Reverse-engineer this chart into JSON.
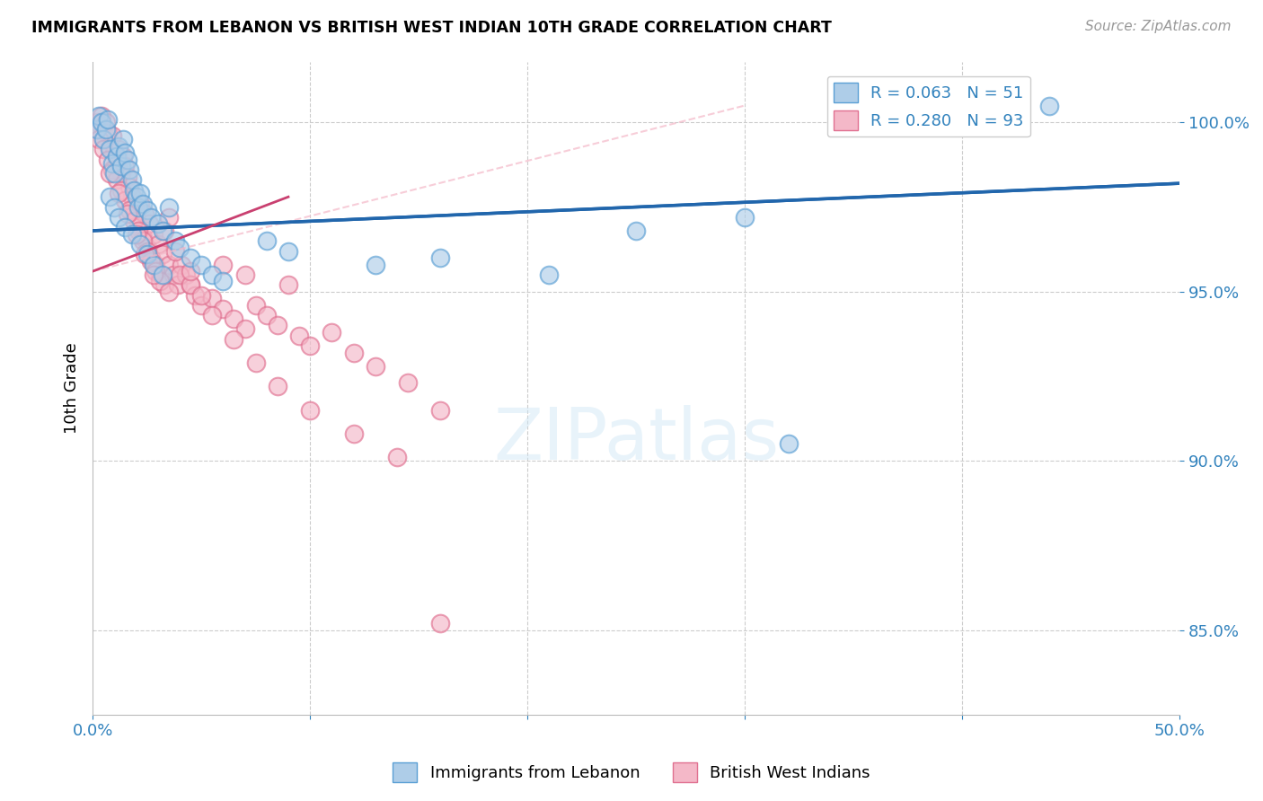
{
  "title": "IMMIGRANTS FROM LEBANON VS BRITISH WEST INDIAN 10TH GRADE CORRELATION CHART",
  "source": "Source: ZipAtlas.com",
  "ylabel": "10th Grade",
  "yticks": [
    85.0,
    90.0,
    95.0,
    100.0
  ],
  "ytick_labels": [
    "85.0%",
    "90.0%",
    "95.0%",
    "100.0%"
  ],
  "xmin": 0.0,
  "xmax": 0.5,
  "ymin": 82.5,
  "ymax": 101.8,
  "legend_r1": "R = 0.063",
  "legend_n1": "N = 51",
  "legend_r2": "R = 0.280",
  "legend_n2": "N = 93",
  "color_blue": "#aecde8",
  "color_pink": "#f4b8c8",
  "color_blue_edge": "#5a9fd4",
  "color_pink_edge": "#e07090",
  "color_blue_line": "#2166ac",
  "color_pink_line": "#c94070",
  "color_text_blue": "#3182bd",
  "blue_scatter_x": [
    0.002,
    0.003,
    0.004,
    0.005,
    0.006,
    0.007,
    0.008,
    0.009,
    0.01,
    0.011,
    0.012,
    0.013,
    0.014,
    0.015,
    0.016,
    0.017,
    0.018,
    0.019,
    0.02,
    0.021,
    0.022,
    0.023,
    0.025,
    0.027,
    0.03,
    0.032,
    0.035,
    0.038,
    0.04,
    0.045,
    0.05,
    0.055,
    0.06,
    0.08,
    0.09,
    0.13,
    0.16,
    0.21,
    0.25,
    0.3,
    0.32,
    0.44,
    0.008,
    0.01,
    0.012,
    0.015,
    0.018,
    0.022,
    0.025,
    0.028,
    0.032
  ],
  "blue_scatter_y": [
    99.8,
    100.2,
    100.0,
    99.5,
    99.8,
    100.1,
    99.2,
    98.8,
    98.5,
    99.0,
    99.3,
    98.7,
    99.5,
    99.1,
    98.9,
    98.6,
    98.3,
    98.0,
    97.8,
    97.5,
    97.9,
    97.6,
    97.4,
    97.2,
    97.0,
    96.8,
    97.5,
    96.5,
    96.3,
    96.0,
    95.8,
    95.5,
    95.3,
    96.5,
    96.2,
    95.8,
    96.0,
    95.5,
    96.8,
    97.2,
    90.5,
    100.5,
    97.8,
    97.5,
    97.2,
    96.9,
    96.7,
    96.4,
    96.1,
    95.8,
    95.5
  ],
  "pink_scatter_x": [
    0.002,
    0.003,
    0.004,
    0.005,
    0.006,
    0.007,
    0.008,
    0.009,
    0.01,
    0.011,
    0.012,
    0.013,
    0.014,
    0.015,
    0.016,
    0.017,
    0.018,
    0.019,
    0.02,
    0.021,
    0.022,
    0.023,
    0.024,
    0.025,
    0.026,
    0.027,
    0.028,
    0.029,
    0.03,
    0.031,
    0.032,
    0.033,
    0.035,
    0.037,
    0.039,
    0.041,
    0.043,
    0.045,
    0.047,
    0.05,
    0.055,
    0.06,
    0.065,
    0.07,
    0.075,
    0.08,
    0.085,
    0.09,
    0.095,
    0.1,
    0.11,
    0.12,
    0.13,
    0.145,
    0.16,
    0.003,
    0.005,
    0.007,
    0.009,
    0.011,
    0.013,
    0.015,
    0.017,
    0.019,
    0.021,
    0.023,
    0.025,
    0.027,
    0.029,
    0.031,
    0.035,
    0.04,
    0.045,
    0.05,
    0.06,
    0.07,
    0.008,
    0.012,
    0.016,
    0.02,
    0.024,
    0.028,
    0.033,
    0.038,
    0.045,
    0.055,
    0.065,
    0.075,
    0.085,
    0.1,
    0.12,
    0.14,
    0.035,
    0.16
  ],
  "pink_scatter_y": [
    100.0,
    99.8,
    100.2,
    99.5,
    100.0,
    99.7,
    99.3,
    99.6,
    99.1,
    98.8,
    99.2,
    98.5,
    99.0,
    98.7,
    98.4,
    98.1,
    97.8,
    97.5,
    97.2,
    96.9,
    97.6,
    96.6,
    97.3,
    96.3,
    97.0,
    96.0,
    96.7,
    95.8,
    96.4,
    95.5,
    96.1,
    95.2,
    95.8,
    95.5,
    95.2,
    95.8,
    95.5,
    95.2,
    94.9,
    94.6,
    94.8,
    94.5,
    94.2,
    93.9,
    94.6,
    94.3,
    94.0,
    95.2,
    93.7,
    93.4,
    93.8,
    93.2,
    92.8,
    92.3,
    91.5,
    99.5,
    99.2,
    98.9,
    98.6,
    98.3,
    98.0,
    97.7,
    97.4,
    97.1,
    96.8,
    96.5,
    96.2,
    95.9,
    95.6,
    95.3,
    95.0,
    95.5,
    95.2,
    94.9,
    95.8,
    95.5,
    98.5,
    97.9,
    97.3,
    96.7,
    96.1,
    95.5,
    96.8,
    96.2,
    95.6,
    94.3,
    93.6,
    92.9,
    92.2,
    91.5,
    90.8,
    90.1,
    97.2,
    85.2
  ],
  "blue_line_x0": 0.0,
  "blue_line_y0": 96.8,
  "blue_line_x1": 0.5,
  "blue_line_y1": 98.2,
  "pink_line_x0": 0.0,
  "pink_line_y0": 95.8,
  "pink_line_x1": 0.08,
  "pink_line_y1": 97.5
}
